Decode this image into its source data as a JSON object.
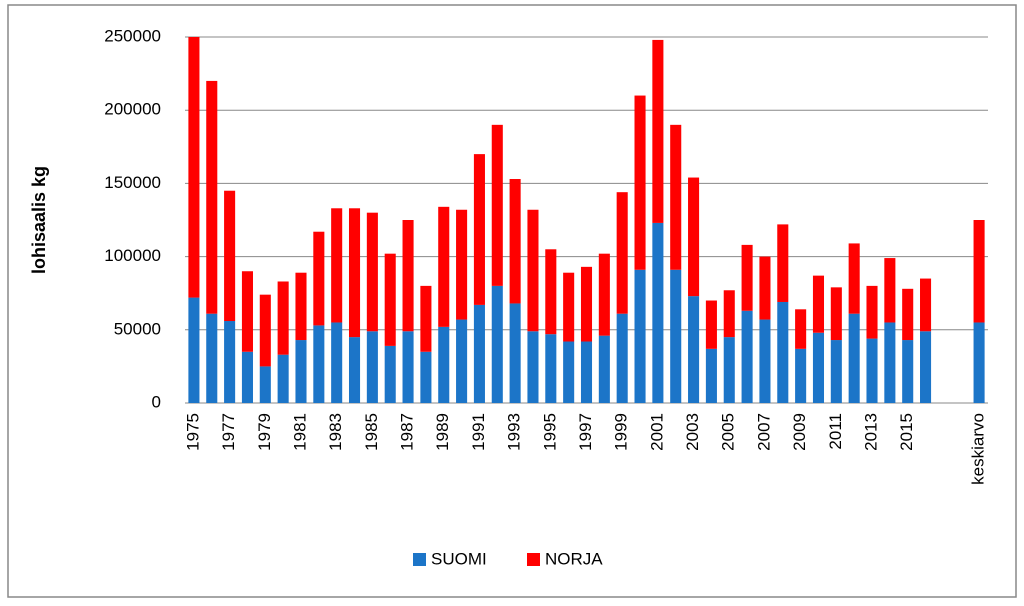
{
  "chart_data": {
    "type": "stacked-bar",
    "y_label": "lohisaalis kg",
    "categories": [
      "1975",
      null,
      "1977",
      null,
      "1979",
      null,
      "1981",
      null,
      "1983",
      null,
      "1985",
      null,
      "1987",
      null,
      "1989",
      null,
      "1991",
      null,
      "1993",
      null,
      "1995",
      null,
      "1997",
      null,
      "1999",
      null,
      "2001",
      null,
      "2003",
      null,
      "2005",
      null,
      "2007",
      null,
      "2009",
      null,
      "2011",
      null,
      "2013",
      null,
      "2015",
      null,
      null,
      null,
      "keskiarvo"
    ],
    "series": [
      {
        "name": "SUOMI",
        "color": "#1c75c8",
        "values": [
          72000,
          61000,
          56000,
          35000,
          25000,
          33000,
          43000,
          53000,
          55000,
          45000,
          49000,
          39000,
          49000,
          35000,
          52000,
          57000,
          67000,
          80000,
          68000,
          49000,
          47000,
          42000,
          42000,
          46000,
          61000,
          91000,
          123000,
          91000,
          73000,
          37000,
          45000,
          63000,
          57000,
          69000,
          37000,
          48000,
          43000,
          61000,
          44000,
          55000,
          43000,
          49000,
          null,
          null,
          55000
        ]
      },
      {
        "name": "NORJA",
        "color": "#ff0000",
        "values": [
          178000,
          159000,
          89000,
          55000,
          49000,
          50000,
          46000,
          64000,
          78000,
          88000,
          81000,
          63000,
          76000,
          45000,
          82000,
          75000,
          103000,
          110000,
          85000,
          83000,
          58000,
          47000,
          51000,
          56000,
          83000,
          119000,
          125000,
          99000,
          81000,
          33000,
          32000,
          45000,
          43000,
          53000,
          27000,
          39000,
          36000,
          48000,
          36000,
          44000,
          35000,
          36000,
          null,
          null,
          70000
        ]
      }
    ],
    "ylim": [
      0,
      250000
    ],
    "yticks": [
      0,
      50000,
      100000,
      150000,
      200000,
      250000
    ],
    "grid": true,
    "legend": "bottom"
  }
}
